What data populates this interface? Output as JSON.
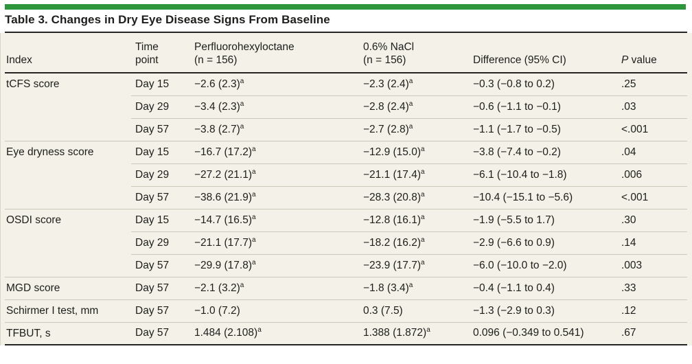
{
  "title": "Table 3. Changes in Dry Eye Disease Signs From Baseline",
  "colors": {
    "accent_green": "#2d963c",
    "table_background": "#f3f1e8",
    "rule_dark": "#242424",
    "rule_light": "#cbc7b9"
  },
  "columns": {
    "index": "Index",
    "time": "Time\npoint",
    "pfho": "Perfluorohexyloctane\n(n = 156)",
    "nacl": "0.6% NaCl\n(n = 156)",
    "diff": "Difference (95% CI)",
    "pvalue_italic": "P",
    "pvalue_rest": " value"
  },
  "rows": [
    {
      "index": "tCFS score",
      "time": "Day 15",
      "pfho": {
        "v": "−2.6 (2.3)",
        "sup": "a"
      },
      "nacl": {
        "v": "−2.3 (2.4)",
        "sup": "a"
      },
      "diff": "−0.3 (−0.8 to 0.2)",
      "p": ".25"
    },
    {
      "index": "",
      "time": "Day 29",
      "pfho": {
        "v": "−3.4 (2.3)",
        "sup": "a"
      },
      "nacl": {
        "v": "−2.8 (2.4)",
        "sup": "a"
      },
      "diff": "−0.6 (−1.1 to −0.1)",
      "p": ".03"
    },
    {
      "index": "",
      "time": "Day 57",
      "pfho": {
        "v": "−3.8 (2.7)",
        "sup": "a"
      },
      "nacl": {
        "v": "−2.7 (2.8)",
        "sup": "a"
      },
      "diff": "−1.1 (−1.7 to −0.5)",
      "p": "<.001"
    },
    {
      "index": "Eye dryness score",
      "time": "Day 15",
      "pfho": {
        "v": "−16.7 (17.2)",
        "sup": "a"
      },
      "nacl": {
        "v": "−12.9 (15.0)",
        "sup": "a"
      },
      "diff": "−3.8 (−7.4 to −0.2)",
      "p": ".04"
    },
    {
      "index": "",
      "time": "Day 29",
      "pfho": {
        "v": "−27.2 (21.1)",
        "sup": "a"
      },
      "nacl": {
        "v": "−21.1 (17.4)",
        "sup": "a"
      },
      "diff": "−6.1 (−10.4 to −1.8)",
      "p": ".006"
    },
    {
      "index": "",
      "time": "Day 57",
      "pfho": {
        "v": "−38.6 (21.9)",
        "sup": "a"
      },
      "nacl": {
        "v": "−28.3 (20.8)",
        "sup": "a"
      },
      "diff": "−10.4 (−15.1 to −5.6)",
      "p": "<.001"
    },
    {
      "index": "OSDI score",
      "time": "Day 15",
      "pfho": {
        "v": "−14.7 (16.5)",
        "sup": "a"
      },
      "nacl": {
        "v": "−12.8 (16.1)",
        "sup": "a"
      },
      "diff": "−1.9 (−5.5 to 1.7)",
      "p": ".30"
    },
    {
      "index": "",
      "time": "Day 29",
      "pfho": {
        "v": "−21.1 (17.7)",
        "sup": "a"
      },
      "nacl": {
        "v": "−18.2 (16.2)",
        "sup": "a"
      },
      "diff": "−2.9 (−6.6 to 0.9)",
      "p": ".14"
    },
    {
      "index": "",
      "time": "Day 57",
      "pfho": {
        "v": "−29.9 (17.8)",
        "sup": "a"
      },
      "nacl": {
        "v": "−23.9 (17.7)",
        "sup": "a"
      },
      "diff": "−6.0 (−10.0 to −2.0)",
      "p": ".003"
    },
    {
      "index": "MGD score",
      "time": "Day 57",
      "pfho": {
        "v": "−2.1 (3.2)",
        "sup": "a"
      },
      "nacl": {
        "v": "−1.8 (3.4)",
        "sup": "a"
      },
      "diff": "−0.4 (−1.1 to 0.4)",
      "p": ".33"
    },
    {
      "index": "Schirmer I test, mm",
      "time": "Day 57",
      "pfho": {
        "v": "−1.0 (7.2)",
        "sup": ""
      },
      "nacl": {
        "v": "0.3 (7.5)",
        "sup": ""
      },
      "diff": "−1.3 (−2.9 to 0.3)",
      "p": ".12"
    },
    {
      "index": "TFBUT, s",
      "time": "Day 57",
      "pfho": {
        "v": "1.484 (2.108)",
        "sup": "a"
      },
      "nacl": {
        "v": "1.388 (1.872)",
        "sup": "a"
      },
      "diff": "0.096 (−0.349 to 0.541)",
      "p": ".67"
    }
  ]
}
